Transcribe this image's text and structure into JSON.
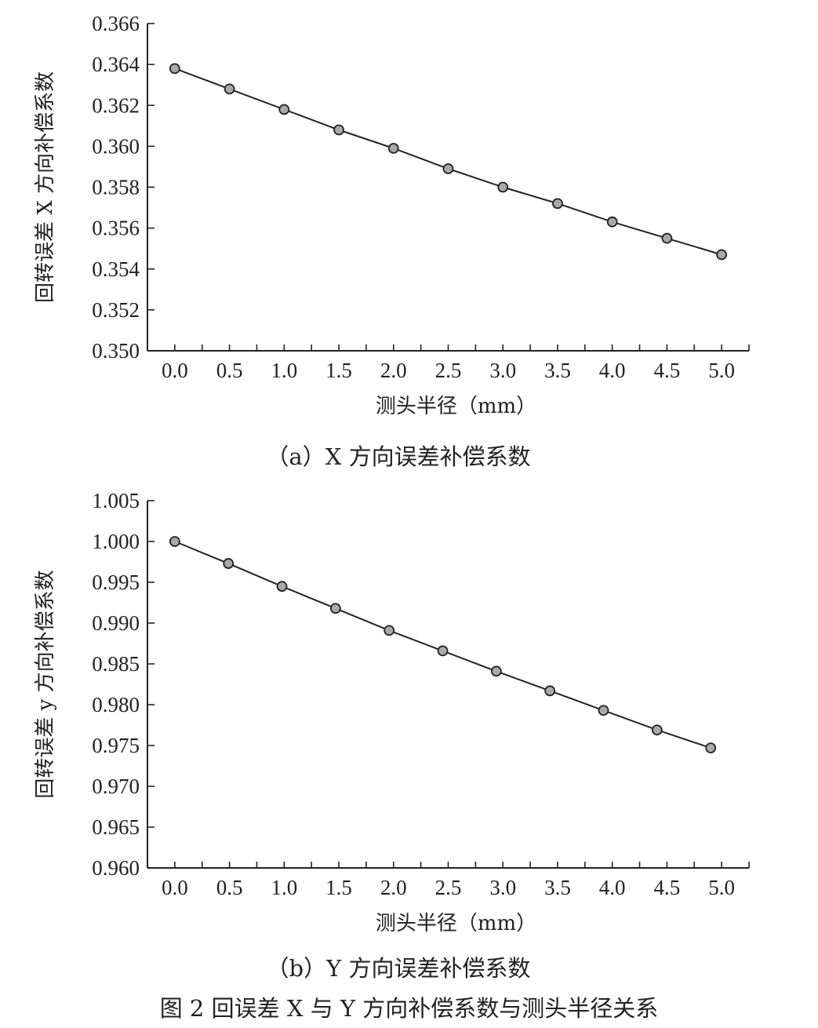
{
  "figure_caption": "图 2   回误差 X 与 Y 方向补偿系数与测头半径关系",
  "chart_data": [
    {
      "type": "line",
      "caption": "（a）X 方向误差补偿系数",
      "xlabel": "测头半径（mm）",
      "ylabel": "回转误差 X 方向补偿系数",
      "xlim": [
        -0.25,
        5.25
      ],
      "ylim": [
        0.35,
        0.366
      ],
      "x_ticks": [
        "0.0",
        "0.5",
        "1.0",
        "1.5",
        "2.0",
        "2.5",
        "3.0",
        "3.5",
        "4.0",
        "4.5",
        "5.0"
      ],
      "y_ticks": [
        "0.350",
        "0.352",
        "0.354",
        "0.356",
        "0.358",
        "0.360",
        "0.362",
        "0.364",
        "0.366"
      ],
      "grid": false,
      "series": [
        {
          "x": [
            0.0,
            0.5,
            1.0,
            1.5,
            2.0,
            2.5,
            3.0,
            3.5,
            4.0,
            4.5,
            5.0
          ],
          "y": [
            0.3638,
            0.3628,
            0.3618,
            0.3608,
            0.3599,
            0.3589,
            0.358,
            0.3572,
            0.3563,
            0.3555,
            0.3547
          ]
        }
      ],
      "colors": {
        "line": "#222222",
        "marker_fill": "#a9a9a9",
        "marker_stroke": "#222222"
      }
    },
    {
      "type": "line",
      "caption": "（b）Y 方向误差补偿系数",
      "xlabel": "测头半径（mm）",
      "ylabel": "回转误差 y 方向补偿系数",
      "xlim": [
        -0.25,
        5.25
      ],
      "ylim": [
        0.96,
        1.005
      ],
      "x_ticks": [
        "0.0",
        "0.5",
        "1.0",
        "1.5",
        "2.0",
        "2.5",
        "3.0",
        "3.5",
        "4.0",
        "4.5",
        "5.0"
      ],
      "y_ticks": [
        "0.960",
        "0.965",
        "0.970",
        "0.975",
        "0.980",
        "0.985",
        "0.990",
        "0.995",
        "1.000",
        "1.005"
      ],
      "grid": false,
      "series": [
        {
          "x": [
            0.0,
            0.49,
            0.98,
            1.47,
            1.96,
            2.45,
            2.94,
            3.43,
            3.92,
            4.41,
            4.9
          ],
          "y": [
            1.0,
            0.9973,
            0.9945,
            0.9918,
            0.9891,
            0.9866,
            0.9841,
            0.9817,
            0.9793,
            0.9769,
            0.9747
          ]
        }
      ],
      "colors": {
        "line": "#222222",
        "marker_fill": "#a9a9a9",
        "marker_stroke": "#222222"
      }
    }
  ]
}
